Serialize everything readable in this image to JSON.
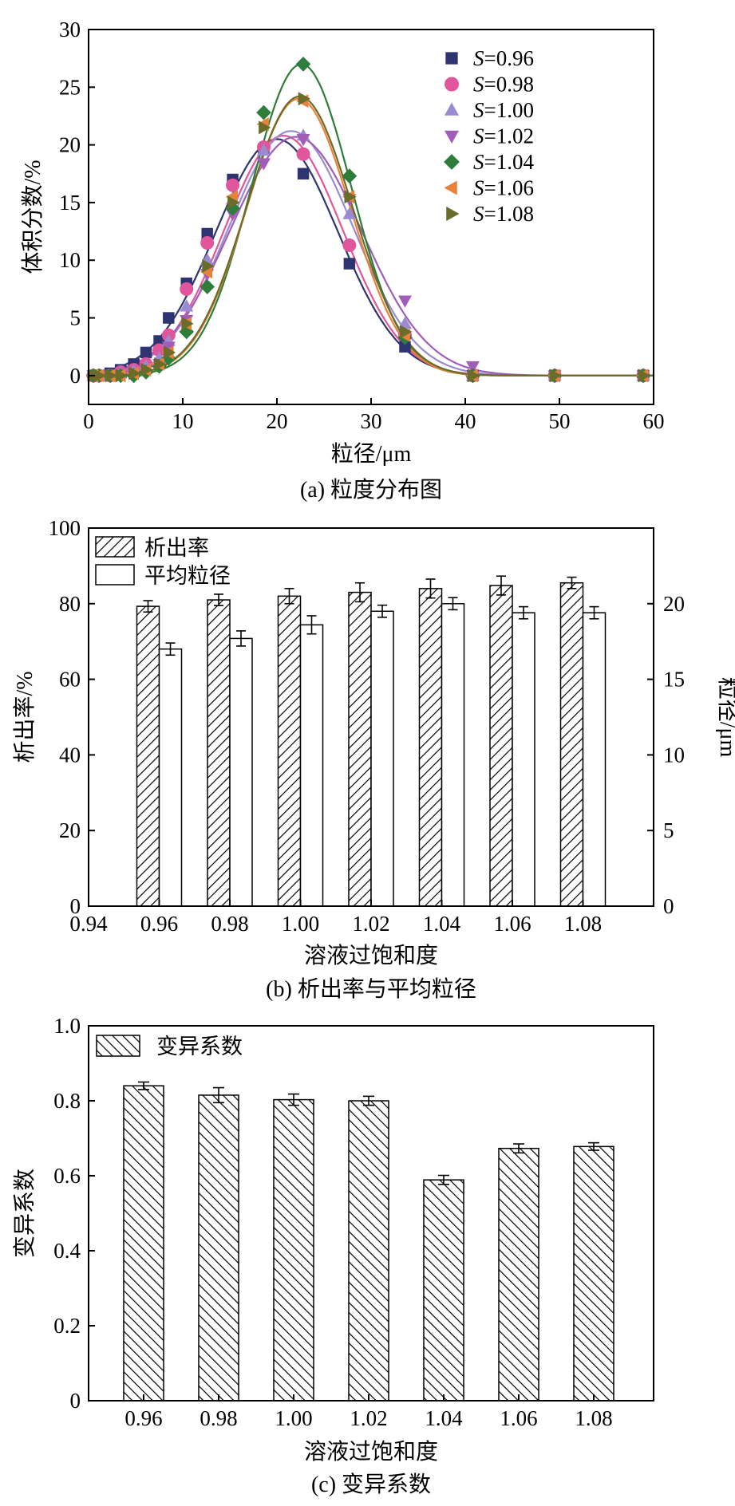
{
  "colors": {
    "s096": "#2e3470",
    "s098": "#e0559b",
    "s100": "#9a8bd0",
    "s102": "#a15eb8",
    "s104": "#2e7d3a",
    "s106": "#e8823a",
    "s108": "#6b6b2a"
  },
  "chart_data": [
    {
      "type": "scatter",
      "panel": "a",
      "caption": "(a) 粒度分布图",
      "xlabel": "粒径/μm",
      "ylabel": "体积分数/%",
      "xlim": [
        0,
        60
      ],
      "ylim": [
        -2.5,
        30
      ],
      "xticks": [
        "0",
        "10",
        "20",
        "30",
        "40",
        "50",
        "60"
      ],
      "yticks": [
        "0",
        "5",
        "10",
        "15",
        "20",
        "25",
        "30"
      ],
      "legend_position": "top-right",
      "x": [
        0.5,
        1.1,
        2.3,
        3.4,
        4.8,
        6.1,
        7.5,
        8.5,
        10.4,
        12.6,
        15.3,
        18.6,
        22.8,
        27.7,
        33.6,
        40.8,
        49.5,
        58.9
      ],
      "series": [
        {
          "name_prefix": "S",
          "name_value": "=0.96",
          "marker": "square",
          "color_key": "s096",
          "y": [
            0,
            0,
            0.2,
            0.5,
            1.0,
            2.0,
            3.0,
            5.0,
            8.0,
            12.3,
            17.0,
            19.6,
            17.5,
            9.7,
            2.5,
            0,
            0,
            0
          ],
          "fit": {
            "amp": 20.5,
            "mu": 20.0,
            "sigma": 6.5
          }
        },
        {
          "name_prefix": "S",
          "name_value": "=0.98",
          "marker": "circle",
          "color_key": "s098",
          "y": [
            0,
            0,
            0,
            0.3,
            0.5,
            1.0,
            2.2,
            3.5,
            7.5,
            11.5,
            16.5,
            19.8,
            19.2,
            11.3,
            3.5,
            0,
            0,
            0
          ],
          "fit": {
            "amp": 20.8,
            "mu": 20.7,
            "sigma": 6.3
          }
        },
        {
          "name_prefix": "S",
          "name_value": "=1.00",
          "marker": "triangle-up",
          "color_key": "s100",
          "y": [
            0,
            0,
            0,
            0.2,
            0.4,
            0.8,
            1.5,
            3.0,
            6.0,
            10.0,
            15.3,
            19.5,
            20.8,
            14.0,
            4.5,
            0,
            0,
            0
          ],
          "fit": {
            "amp": 21.2,
            "mu": 21.5,
            "sigma": 6.6
          }
        },
        {
          "name_prefix": "S",
          "name_value": "=1.02",
          "marker": "triangle-down",
          "color_key": "s102",
          "y": [
            0,
            0,
            0,
            0,
            0.2,
            0.5,
            1.0,
            2.5,
            4.8,
            8.8,
            14.0,
            18.4,
            20.5,
            15.3,
            6.5,
            0.8,
            0,
            0
          ],
          "fit": {
            "amp": 20.7,
            "mu": 22.0,
            "sigma": 7.0
          }
        },
        {
          "name_prefix": "S",
          "name_value": "=1.04",
          "marker": "diamond",
          "color_key": "s104",
          "y": [
            0,
            0,
            0,
            0,
            0,
            0.3,
            0.8,
            1.5,
            3.8,
            7.7,
            14.5,
            22.8,
            27.0,
            17.3,
            3.3,
            0,
            0,
            0
          ],
          "fit": {
            "amp": 27.0,
            "mu": 22.6,
            "sigma": 5.3
          }
        },
        {
          "name_prefix": "S",
          "name_value": "=1.06",
          "marker": "triangle-left",
          "color_key": "s106",
          "y": [
            0,
            0,
            0,
            0,
            0.2,
            0.5,
            1.0,
            2.0,
            4.5,
            9.0,
            15.5,
            21.8,
            23.8,
            15.5,
            3.5,
            0,
            0,
            0
          ],
          "fit": {
            "amp": 24.0,
            "mu": 22.3,
            "sigma": 5.5
          }
        },
        {
          "name_prefix": "S",
          "name_value": "=1.08",
          "marker": "triangle-right",
          "color_key": "s108",
          "y": [
            0,
            0,
            0,
            0,
            0.2,
            0.5,
            1.0,
            2.0,
            4.5,
            9.5,
            15.0,
            21.5,
            24.0,
            15.5,
            3.8,
            0,
            0,
            0
          ],
          "fit": {
            "amp": 24.2,
            "mu": 22.4,
            "sigma": 5.6
          }
        }
      ]
    },
    {
      "type": "bar",
      "panel": "b",
      "caption": "(b) 析出率与平均粒径",
      "xlabel": "溶液过饱和度",
      "ylabel_left": "析出率/%",
      "ylabel_right": "粒径/μm",
      "xlim": [
        0.94,
        1.1
      ],
      "xticks": [
        "0.94",
        "0.96",
        "0.98",
        "1.00",
        "1.02",
        "1.04",
        "1.06",
        "1.08"
      ],
      "ylim_left": [
        0,
        100
      ],
      "yticks_left": [
        "0",
        "20",
        "40",
        "60",
        "80",
        "100"
      ],
      "ylim_right": [
        0,
        25
      ],
      "yticks_right": [
        "0",
        "5",
        "10",
        "15",
        "20"
      ],
      "legend_position": "top-left",
      "categories": [
        0.96,
        0.98,
        1.0,
        1.02,
        1.04,
        1.06,
        1.08
      ],
      "series": [
        {
          "name": "析出率",
          "axis": "left",
          "pattern": "hatch-forward",
          "values": [
            79.3,
            81.0,
            82.0,
            83.0,
            84.0,
            84.8,
            85.5
          ],
          "errors": [
            1.5,
            1.5,
            2.0,
            2.5,
            2.5,
            2.5,
            1.5
          ]
        },
        {
          "name": "平均粒径",
          "axis": "right",
          "pattern": "none",
          "values": [
            17.0,
            17.7,
            18.6,
            19.5,
            20.0,
            19.4,
            19.4
          ],
          "errors": [
            0.4,
            0.5,
            0.6,
            0.4,
            0.4,
            0.4,
            0.4
          ]
        }
      ]
    },
    {
      "type": "bar",
      "panel": "c",
      "caption": "(c) 变异系数",
      "xlabel": "溶液过饱和度",
      "ylabel": "变异系数",
      "xticks": [
        "0.96",
        "0.98",
        "1.00",
        "1.02",
        "1.04",
        "1.06",
        "1.08"
      ],
      "ylim": [
        0,
        1.0
      ],
      "yticks": [
        "0",
        "0.2",
        "0.4",
        "0.6",
        "0.8",
        "1.0"
      ],
      "legend_position": "top-left",
      "categories": [
        "0.96",
        "0.98",
        "1.00",
        "1.02",
        "1.04",
        "1.06",
        "1.08"
      ],
      "series": [
        {
          "name": "变异系数",
          "pattern": "hatch-backward",
          "values": [
            0.84,
            0.815,
            0.803,
            0.8,
            0.589,
            0.673,
            0.678
          ],
          "errors": [
            0.01,
            0.02,
            0.015,
            0.012,
            0.012,
            0.012,
            0.01
          ]
        }
      ]
    }
  ]
}
